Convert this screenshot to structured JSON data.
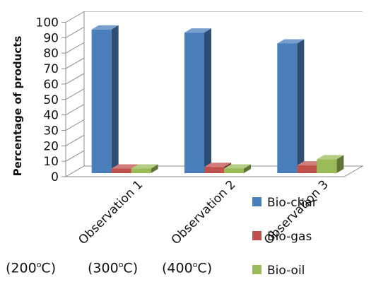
{
  "chart_data": {
    "type": "bar",
    "style": "3d-clustered-column",
    "categories": [
      "Observation 1",
      "Observation 2",
      "Observation 3"
    ],
    "category_notes": [
      {
        "base": "(200",
        "sup": "o",
        "unit": "C)"
      },
      {
        "base": "(300",
        "sup": "o",
        "unit": "C)"
      },
      {
        "base": "(400",
        "sup": "o",
        "unit": "C)"
      }
    ],
    "series": [
      {
        "name": "Bio-char",
        "color": "#4A7EBB",
        "values": [
          93,
          91,
          84
        ]
      },
      {
        "name": "Bio-gas",
        "color": "#C0504D",
        "values": [
          3,
          4,
          5
        ]
      },
      {
        "name": "Bio-oil",
        "color": "#9BBB59",
        "values": [
          3,
          3,
          9
        ]
      }
    ],
    "ylabel": "Percentage of products",
    "xlabel": "",
    "ylim": [
      0,
      100
    ],
    "yticks": [
      0,
      10,
      20,
      30,
      40,
      50,
      60,
      70,
      80,
      90,
      100
    ],
    "grid": true,
    "legend": "right"
  }
}
